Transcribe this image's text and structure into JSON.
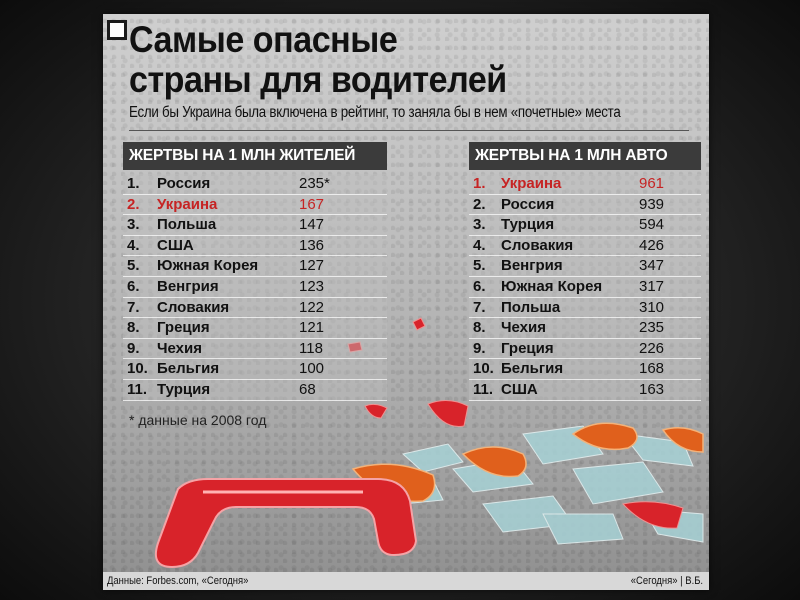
{
  "title_line1": "Самые опасные",
  "title_line2": "страны для водителей",
  "subtitle": "Если бы Украина была включена в рейтинг, то заняла бы в нем «почетные» места",
  "tables": {
    "left": {
      "header": "ЖЕРТВЫ НА 1 МЛН ЖИТЕЛЕЙ",
      "rows": [
        {
          "rank": "1.",
          "country": "Россия",
          "value": "235*",
          "highlight": false
        },
        {
          "rank": "2.",
          "country": "Украина",
          "value": "167",
          "highlight": true
        },
        {
          "rank": "3.",
          "country": "Польша",
          "value": "147",
          "highlight": false
        },
        {
          "rank": "4.",
          "country": "США",
          "value": "136",
          "highlight": false
        },
        {
          "rank": "5.",
          "country": "Южная Корея",
          "value": "127",
          "highlight": false
        },
        {
          "rank": "6.",
          "country": "Венгрия",
          "value": "123",
          "highlight": false
        },
        {
          "rank": "7.",
          "country": "Словакия",
          "value": "122",
          "highlight": false
        },
        {
          "rank": "8.",
          "country": "Греция",
          "value": "121",
          "highlight": false
        },
        {
          "rank": "9.",
          "country": "Чехия",
          "value": "118",
          "highlight": false
        },
        {
          "rank": "10.",
          "country": "Бельгия",
          "value": "100",
          "highlight": false
        },
        {
          "rank": "11.",
          "country": "Турция",
          "value": "68",
          "highlight": false
        }
      ]
    },
    "right": {
      "header": "ЖЕРТВЫ НА 1 МЛН АВТО",
      "rows": [
        {
          "rank": "1.",
          "country": "Украина",
          "value": "961",
          "highlight": true
        },
        {
          "rank": "2.",
          "country": "Россия",
          "value": "939",
          "highlight": false
        },
        {
          "rank": "3.",
          "country": "Турция",
          "value": "594",
          "highlight": false
        },
        {
          "rank": "4.",
          "country": "Словакия",
          "value": "426",
          "highlight": false
        },
        {
          "rank": "5.",
          "country": "Венгрия",
          "value": "347",
          "highlight": false
        },
        {
          "rank": "6.",
          "country": "Южная Корея",
          "value": "317",
          "highlight": false
        },
        {
          "rank": "7.",
          "country": "Польша",
          "value": "310",
          "highlight": false
        },
        {
          "rank": "8.",
          "country": "Чехия",
          "value": "235",
          "highlight": false
        },
        {
          "rank": "9.",
          "country": "Греция",
          "value": "226",
          "highlight": false
        },
        {
          "rank": "10.",
          "country": "Бельгия",
          "value": "168",
          "highlight": false
        },
        {
          "rank": "11.",
          "country": "США",
          "value": "163",
          "highlight": false
        }
      ]
    }
  },
  "note": "* данные на 2008 год",
  "footer_left": "Данные: Forbes.com, «Сегодня»",
  "footer_right": "«Сегодня» | В.Б.",
  "colors": {
    "highlight": "#c62424",
    "header_bg": "#3b3b3b",
    "debris_red": "#d8232a",
    "debris_orange": "#e0601c"
  }
}
